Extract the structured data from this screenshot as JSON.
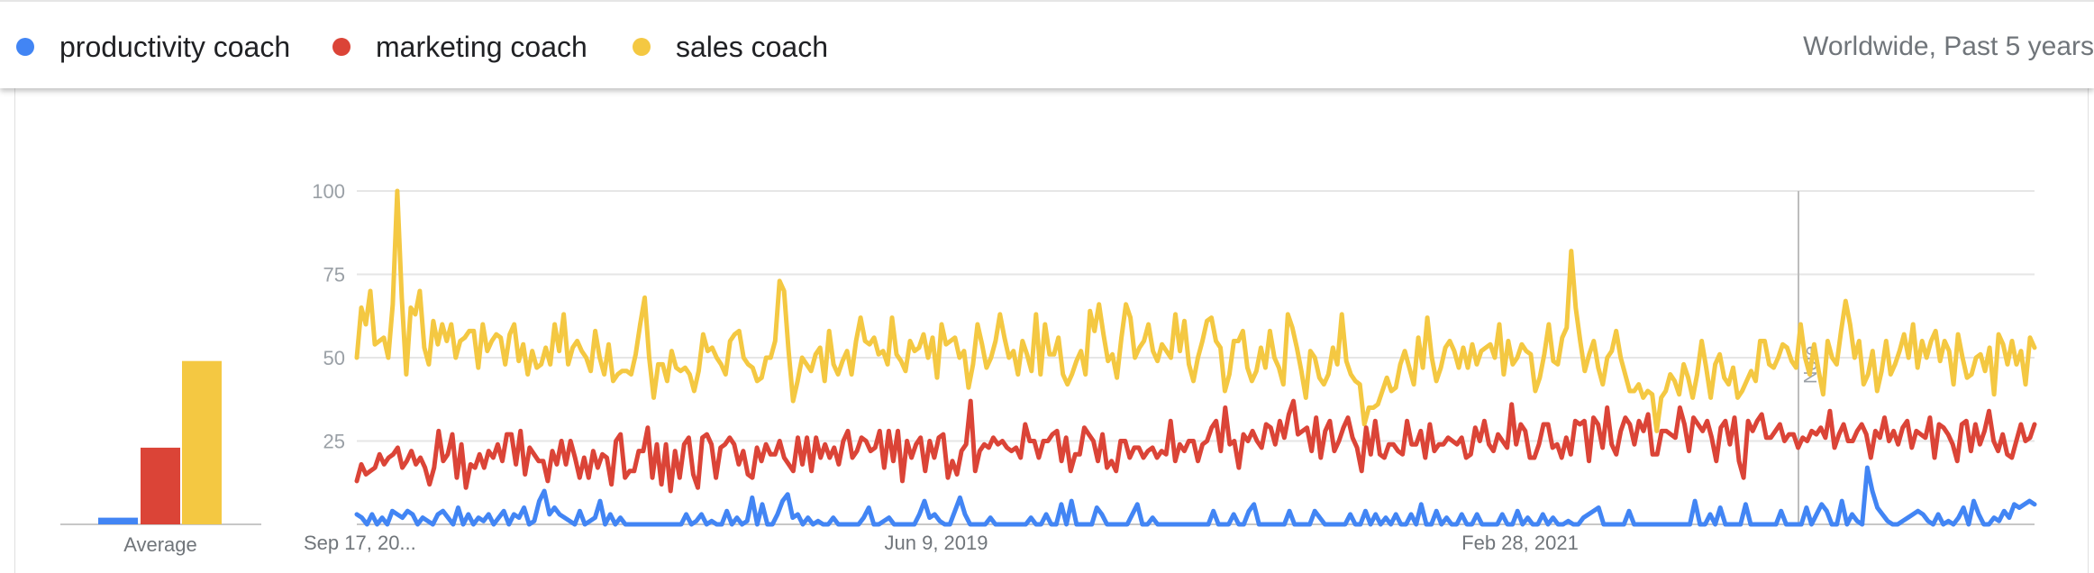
{
  "header": {
    "scope_label": "Worldwide, Past 5 years"
  },
  "legend": [
    {
      "label": "productivity coach",
      "color": "#4285f4"
    },
    {
      "label": "marketing coach",
      "color": "#db4437"
    },
    {
      "label": "sales coach",
      "color": "#f4c842"
    }
  ],
  "chart_data": [
    {
      "type": "bar",
      "categories": [
        "productivity coach",
        "marketing coach",
        "sales coach"
      ],
      "values": [
        2,
        23,
        49
      ],
      "xlabel": "Average",
      "colors": [
        "#4285f4",
        "#db4437",
        "#f4c842"
      ]
    },
    {
      "type": "line",
      "x_tick_labels": [
        "Sep 17, 20...",
        "Jun 9, 2019",
        "Feb 28, 2021"
      ],
      "y_tick_labels": [
        "100",
        "75",
        "50",
        "25"
      ],
      "ylim": [
        0,
        100
      ],
      "grid": true,
      "annotation": "Note",
      "series": [
        {
          "name": "productivity coach",
          "color": "#4285f4",
          "values": [
            3,
            2,
            0,
            3,
            0,
            2,
            0,
            4,
            3,
            2,
            4,
            3,
            0,
            2,
            1,
            0,
            3,
            4,
            2,
            0,
            5,
            0,
            3,
            0,
            2,
            1,
            3,
            0,
            2,
            4,
            0,
            3,
            2,
            5,
            0,
            1,
            7,
            10,
            3,
            5,
            3,
            2,
            1,
            0,
            4,
            0,
            1,
            2,
            7,
            0,
            3,
            0,
            2,
            0,
            0,
            0,
            0,
            0,
            0,
            0,
            0,
            0,
            0,
            0,
            0,
            3,
            0,
            1,
            3,
            0,
            1,
            0,
            0,
            4,
            0,
            2,
            0,
            1,
            8,
            0,
            6,
            0,
            0,
            3,
            7,
            9,
            2,
            3,
            0,
            2,
            0,
            1,
            0,
            0,
            2,
            0,
            0,
            0,
            0,
            0,
            2,
            5,
            0,
            0,
            1,
            2,
            0,
            0,
            0,
            0,
            0,
            3,
            7,
            2,
            3,
            1,
            0,
            0,
            4,
            8,
            3,
            0,
            0,
            0,
            0,
            2,
            0,
            0,
            0,
            0,
            0,
            0,
            0,
            2,
            0,
            0,
            3,
            0,
            0,
            6,
            0,
            7,
            0,
            0,
            0,
            0,
            5,
            3,
            0,
            0,
            0,
            0,
            0,
            3,
            6,
            0,
            0,
            2,
            0,
            0,
            0,
            0,
            0,
            0,
            0,
            0,
            0,
            0,
            0,
            4,
            0,
            0,
            0,
            3,
            0,
            0,
            4,
            6,
            0,
            0,
            0,
            0,
            0,
            0,
            4,
            0,
            0,
            0,
            0,
            4,
            2,
            0,
            0,
            0,
            0,
            0,
            3,
            0,
            0,
            4,
            0,
            3,
            0,
            2,
            0,
            3,
            0,
            0,
            3,
            0,
            6,
            0,
            0,
            4,
            0,
            2,
            0,
            0,
            3,
            0,
            0,
            3,
            0,
            0,
            0,
            0,
            3,
            0,
            0,
            4,
            0,
            2,
            0,
            0,
            3,
            0,
            2,
            0,
            0,
            1,
            0,
            0,
            2,
            3,
            4,
            5,
            0,
            0,
            0,
            0,
            0,
            4,
            0,
            0,
            0,
            0,
            0,
            0,
            0,
            0,
            0,
            0,
            0,
            0,
            7,
            0,
            0,
            3,
            0,
            5,
            0,
            0,
            0,
            0,
            6,
            0,
            0,
            0,
            0,
            0,
            0,
            4,
            0,
            0,
            0,
            0,
            5,
            0,
            3,
            6,
            4,
            0,
            0,
            7,
            0,
            3,
            1,
            0,
            17,
            10,
            5,
            3,
            1,
            0,
            0,
            1,
            2,
            3,
            4,
            3,
            1,
            0,
            3,
            0,
            1,
            0,
            2,
            5,
            0,
            7,
            3,
            0,
            0,
            2,
            1,
            4,
            2,
            6,
            5,
            6,
            7,
            6
          ]
        },
        {
          "name": "marketing coach",
          "color": "#db4437",
          "values": [
            13,
            18,
            15,
            16,
            17,
            21,
            18,
            20,
            21,
            23,
            17,
            19,
            22,
            18,
            20,
            17,
            12,
            17,
            28,
            19,
            21,
            27,
            14,
            24,
            11,
            18,
            17,
            21,
            17,
            22,
            20,
            24,
            19,
            27,
            27,
            18,
            28,
            15,
            23,
            21,
            19,
            19,
            13,
            22,
            18,
            25,
            18,
            25,
            20,
            14,
            20,
            14,
            22,
            17,
            21,
            20,
            12,
            25,
            27,
            14,
            16,
            16,
            22,
            22,
            29,
            14,
            24,
            12,
            24,
            10,
            22,
            14,
            24,
            26,
            15,
            11,
            26,
            27,
            24,
            14,
            23,
            24,
            26,
            24,
            18,
            22,
            15,
            14,
            23,
            19,
            24,
            21,
            21,
            25,
            20,
            18,
            16,
            26,
            18,
            26,
            16,
            26,
            20,
            24,
            20,
            23,
            18,
            25,
            28,
            20,
            22,
            26,
            25,
            22,
            23,
            28,
            17,
            28,
            19,
            28,
            13,
            25,
            20,
            24,
            26,
            16,
            25,
            20,
            26,
            27,
            14,
            19,
            15,
            22,
            24,
            37,
            16,
            22,
            24,
            23,
            26,
            24,
            25,
            23,
            22,
            23,
            20,
            30,
            25,
            25,
            20,
            25,
            25,
            27,
            28,
            19,
            26,
            16,
            21,
            21,
            29,
            27,
            25,
            19,
            27,
            17,
            19,
            16,
            25,
            25,
            20,
            23,
            23,
            20,
            22,
            23,
            20,
            22,
            21,
            31,
            19,
            24,
            22,
            25,
            25,
            19,
            24,
            25,
            29,
            31,
            22,
            35,
            24,
            25,
            17,
            27,
            25,
            28,
            25,
            23,
            30,
            29,
            24,
            31,
            26,
            33,
            37,
            27,
            28,
            29,
            22,
            32,
            20,
            28,
            31,
            22,
            25,
            29,
            32,
            26,
            23,
            16,
            29,
            21,
            31,
            21,
            20,
            24,
            24,
            22,
            21,
            31,
            24,
            24,
            28,
            20,
            30,
            22,
            24,
            24,
            26,
            25,
            24,
            26,
            20,
            21,
            29,
            25,
            31,
            24,
            22,
            27,
            25,
            23,
            36,
            24,
            30,
            28,
            20,
            20,
            24,
            30,
            30,
            23,
            24,
            20,
            26,
            21,
            31,
            30,
            31,
            19,
            32,
            30,
            23,
            35,
            24,
            21,
            28,
            32,
            30,
            24,
            31,
            28,
            33,
            21,
            21,
            28,
            28,
            27,
            26,
            35,
            30,
            22,
            32,
            30,
            28,
            31,
            26,
            19,
            29,
            31,
            24,
            32,
            19,
            14,
            31,
            28,
            31,
            33,
            26,
            26,
            28,
            30,
            25,
            27,
            27,
            23,
            26,
            25,
            28,
            27,
            29,
            26,
            34,
            23,
            27,
            30,
            25,
            25,
            28,
            30,
            27,
            20,
            28,
            26,
            32,
            25,
            28,
            24,
            29,
            31,
            23,
            28,
            27,
            26,
            32,
            20,
            30,
            29,
            27,
            24,
            19,
            30,
            31,
            22,
            30,
            24,
            28,
            34,
            25,
            22,
            27,
            21,
            20,
            25,
            30,
            25,
            26,
            30
          ]
        },
        {
          "name": "sales coach",
          "color": "#f4c842",
          "values": [
            50,
            65,
            60,
            70,
            54,
            55,
            56,
            50,
            66,
            100,
            68,
            45,
            65,
            63,
            70,
            53,
            48,
            61,
            54,
            60,
            55,
            60,
            50,
            55,
            56,
            58,
            58,
            47,
            60,
            52,
            55,
            57,
            56,
            48,
            57,
            60,
            49,
            54,
            45,
            52,
            47,
            48,
            53,
            48,
            60,
            52,
            63,
            48,
            53,
            55,
            52,
            50,
            46,
            58,
            50,
            45,
            54,
            43,
            45,
            46,
            46,
            45,
            51,
            60,
            68,
            50,
            38,
            48,
            48,
            43,
            52,
            47,
            46,
            47,
            45,
            40,
            46,
            57,
            52,
            53,
            50,
            48,
            45,
            55,
            57,
            58,
            50,
            48,
            47,
            43,
            44,
            50,
            50,
            55,
            73,
            70,
            52,
            37,
            43,
            50,
            48,
            46,
            51,
            53,
            43,
            58,
            48,
            45,
            49,
            52,
            45,
            55,
            62,
            55,
            54,
            56,
            51,
            52,
            48,
            62,
            51,
            49,
            46,
            55,
            52,
            53,
            57,
            50,
            56,
            44,
            60,
            54,
            55,
            56,
            50,
            52,
            41,
            48,
            60,
            54,
            47,
            50,
            55,
            63,
            56,
            50,
            52,
            45,
            55,
            51,
            46,
            63,
            45,
            60,
            51,
            51,
            56,
            45,
            42,
            45,
            49,
            52,
            45,
            64,
            58,
            66,
            57,
            49,
            51,
            44,
            56,
            66,
            62,
            50,
            53,
            55,
            60,
            52,
            49,
            54,
            52,
            50,
            63,
            52,
            61,
            48,
            43,
            50,
            55,
            61,
            62,
            55,
            53,
            40,
            45,
            55,
            55,
            58,
            47,
            43,
            46,
            53,
            47,
            58,
            50,
            47,
            42,
            63,
            59,
            53,
            46,
            38,
            52,
            50,
            44,
            42,
            45,
            53,
            48,
            63,
            49,
            45,
            43,
            42,
            30,
            35,
            35,
            36,
            40,
            44,
            40,
            41,
            48,
            52,
            47,
            42,
            56,
            47,
            62,
            50,
            43,
            47,
            53,
            55,
            52,
            47,
            53,
            47,
            54,
            48,
            52,
            53,
            54,
            50,
            60,
            45,
            55,
            48,
            50,
            54,
            52,
            51,
            40,
            44,
            51,
            60,
            49,
            48,
            56,
            59,
            82,
            65,
            55,
            46,
            51,
            55,
            47,
            42,
            50,
            52,
            58,
            50,
            45,
            40,
            40,
            42,
            38,
            40,
            39,
            28,
            38,
            40,
            45,
            43,
            39,
            48,
            44,
            38,
            45,
            55,
            47,
            38,
            48,
            51,
            44,
            42,
            47,
            38,
            40,
            43,
            46,
            43,
            55,
            55,
            48,
            47,
            50,
            54,
            53,
            49,
            47,
            60,
            50,
            45,
            54,
            46,
            39,
            55,
            50,
            48,
            58,
            67,
            60,
            50,
            55,
            42,
            45,
            52,
            40,
            46,
            55,
            45,
            48,
            52,
            57,
            50,
            60,
            47,
            55,
            50,
            55,
            58,
            49,
            55,
            52,
            42,
            57,
            50,
            44,
            45,
            50,
            51,
            46,
            53,
            39,
            57,
            54,
            48,
            55,
            48,
            52,
            42,
            56,
            53
          ]
        }
      ]
    }
  ]
}
